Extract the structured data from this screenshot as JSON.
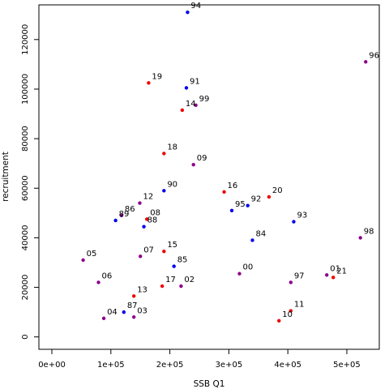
{
  "chart_data": {
    "type": "scatter",
    "xlabel": "SSB Q1",
    "ylabel": "recruitment",
    "xlim": [
      -22000,
      555000
    ],
    "ylim": [
      -5000,
      134000
    ],
    "x_ticks": [
      {
        "value": 0,
        "label": "0e+00"
      },
      {
        "value": 100000,
        "label": "1e+05"
      },
      {
        "value": 200000,
        "label": "2e+05"
      },
      {
        "value": 300000,
        "label": "3e+05"
      },
      {
        "value": 400000,
        "label": "4e+05"
      },
      {
        "value": 500000,
        "label": "5e+05"
      }
    ],
    "y_ticks": [
      {
        "value": 0,
        "label": "0"
      },
      {
        "value": 20000,
        "label": "20000"
      },
      {
        "value": 40000,
        "label": "40000"
      },
      {
        "value": 60000,
        "label": "60000"
      },
      {
        "value": 80000,
        "label": "80000"
      },
      {
        "value": 100000,
        "label": "100000"
      },
      {
        "value": 120000,
        "label": "120000"
      }
    ],
    "colors": {
      "blue": "#0000ee",
      "red": "#ee0000",
      "purple": "#8b008b"
    },
    "points": [
      {
        "label": "94",
        "x": 230000,
        "y": 131000,
        "color": "blue"
      },
      {
        "label": "96",
        "x": 532000,
        "y": 111000,
        "color": "purple"
      },
      {
        "label": "19",
        "x": 164000,
        "y": 102500,
        "color": "red"
      },
      {
        "label": "91",
        "x": 228000,
        "y": 100500,
        "color": "blue"
      },
      {
        "label": "99",
        "x": 244000,
        "y": 93500,
        "color": "purple"
      },
      {
        "label": "14",
        "x": 221000,
        "y": 91500,
        "color": "red"
      },
      {
        "label": "18",
        "x": 190000,
        "y": 74000,
        "color": "red"
      },
      {
        "label": "09",
        "x": 240000,
        "y": 69500,
        "color": "purple"
      },
      {
        "label": "90",
        "x": 190000,
        "y": 59000,
        "color": "blue"
      },
      {
        "label": "16",
        "x": 292000,
        "y": 58500,
        "color": "red"
      },
      {
        "label": "20",
        "x": 368000,
        "y": 56500,
        "color": "red"
      },
      {
        "label": "12",
        "x": 149000,
        "y": 54000,
        "color": "purple"
      },
      {
        "label": "92",
        "x": 332000,
        "y": 53000,
        "color": "blue"
      },
      {
        "label": "95",
        "x": 305000,
        "y": 51000,
        "color": "blue"
      },
      {
        "label": "86",
        "x": 118000,
        "y": 49000,
        "color": "purple"
      },
      {
        "label": "08",
        "x": 161000,
        "y": 47500,
        "color": "red"
      },
      {
        "label": "89",
        "x": 108000,
        "y": 47000,
        "color": "blue"
      },
      {
        "label": "93",
        "x": 410000,
        "y": 46500,
        "color": "blue"
      },
      {
        "label": "88",
        "x": 156000,
        "y": 44500,
        "color": "blue"
      },
      {
        "label": "98",
        "x": 523000,
        "y": 40000,
        "color": "purple"
      },
      {
        "label": "84",
        "x": 340000,
        "y": 39000,
        "color": "blue"
      },
      {
        "label": "15",
        "x": 190000,
        "y": 34500,
        "color": "red"
      },
      {
        "label": "07",
        "x": 150000,
        "y": 32500,
        "color": "purple"
      },
      {
        "label": "05",
        "x": 53000,
        "y": 31000,
        "color": "purple"
      },
      {
        "label": "85",
        "x": 207000,
        "y": 28500,
        "color": "blue"
      },
      {
        "label": "00",
        "x": 318000,
        "y": 25500,
        "color": "purple"
      },
      {
        "label": "01",
        "x": 466000,
        "y": 25000,
        "color": "purple"
      },
      {
        "label": "21",
        "x": 477000,
        "y": 24000,
        "color": "red"
      },
      {
        "label": "06",
        "x": 79000,
        "y": 22000,
        "color": "purple"
      },
      {
        "label": "97",
        "x": 405000,
        "y": 22000,
        "color": "purple"
      },
      {
        "label": "17",
        "x": 187000,
        "y": 20500,
        "color": "red"
      },
      {
        "label": "02",
        "x": 219000,
        "y": 20500,
        "color": "purple"
      },
      {
        "label": "13",
        "x": 139000,
        "y": 16500,
        "color": "red"
      },
      {
        "label": "11",
        "x": 405000,
        "y": 10500,
        "color": "red"
      },
      {
        "label": "87",
        "x": 122000,
        "y": 10000,
        "color": "blue"
      },
      {
        "label": "03",
        "x": 139000,
        "y": 8000,
        "color": "purple"
      },
      {
        "label": "04",
        "x": 88000,
        "y": 7500,
        "color": "purple"
      },
      {
        "label": "10",
        "x": 385000,
        "y": 6500,
        "color": "red"
      }
    ]
  }
}
